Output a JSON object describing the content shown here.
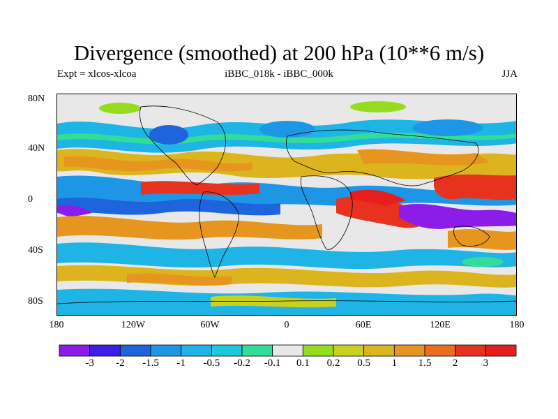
{
  "title": "Divergence (smoothed) at 200 hPa (10**6 m/s)",
  "subtitle_left": "Expt = xlcos-xlcoa",
  "subtitle_center": "iBBC_018k - iBBC_000k",
  "subtitle_right": "JJA",
  "lat_ticks": [
    "80N",
    "40N",
    "0",
    "40S",
    "80S"
  ],
  "lon_ticks": [
    "180",
    "120W",
    "60W",
    "0",
    "60E",
    "120E",
    "180"
  ],
  "colorbar": {
    "labels": [
      "-3",
      "-2",
      "-1.5",
      "-1",
      "-0.5",
      "-0.2",
      "-0.1",
      "0.1",
      "0.2",
      "0.5",
      "1",
      "1.5",
      "2",
      "3"
    ],
    "colors": [
      "#8c1ce8",
      "#3c1ee8",
      "#1e64dc",
      "#1e96e6",
      "#1eb4e6",
      "#1ec8dc",
      "#32dc9b",
      "#e8e8e8",
      "#96dc1e",
      "#c8d21e",
      "#dcb41e",
      "#e6961e",
      "#ea6e1e",
      "#e6321e",
      "#e61e1e"
    ]
  }
}
